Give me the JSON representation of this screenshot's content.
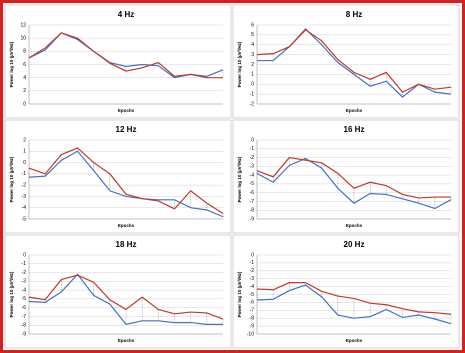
{
  "chart_data": [
    {
      "type": "line",
      "title": "4 Hz",
      "y_label": "Power log 10 (µV²/Hz)",
      "x_label": "Epochs",
      "ylim": [
        0,
        12
      ],
      "yticks": [
        0,
        2,
        4,
        6,
        8,
        10,
        12
      ],
      "grid": true,
      "series": [
        {
          "color": "#4472c4",
          "values": [
            7,
            8.2,
            10.8,
            9.8,
            8,
            6.3,
            5.7,
            6,
            5.8,
            4,
            4.5,
            4.2,
            5.2
          ]
        },
        {
          "color": "#c0392b",
          "values": [
            7,
            8.5,
            10.8,
            10,
            8,
            6.2,
            5,
            5.5,
            6.3,
            4.2,
            4.5,
            4,
            4
          ]
        }
      ]
    },
    {
      "type": "line",
      "title": "8 Hz",
      "y_label": "Power log 10 (µV²/Hz)",
      "x_label": "Epochs",
      "ylim": [
        -2,
        6
      ],
      "yticks": [
        -2,
        -1,
        0,
        1,
        2,
        3,
        4,
        5,
        6
      ],
      "grid": true,
      "series": [
        {
          "color": "#4472c4",
          "values": [
            2.4,
            2.4,
            3.8,
            5.6,
            4,
            2.2,
            1,
            -0.2,
            0.3,
            -1.3,
            0,
            -0.8,
            -1
          ]
        },
        {
          "color": "#c0392b",
          "values": [
            3,
            3.1,
            3.8,
            5.5,
            4.4,
            2.5,
            1.2,
            0.5,
            1.2,
            -0.8,
            0,
            -0.5,
            -0.3
          ]
        }
      ]
    },
    {
      "type": "line",
      "title": "12 Hz",
      "y_label": "Power log 10 (µV²/Hz)",
      "x_label": "Epochs",
      "ylim": [
        -5,
        2
      ],
      "yticks": [
        -5,
        -4,
        -3,
        -2,
        -1,
        0,
        1,
        2
      ],
      "grid": true,
      "series": [
        {
          "color": "#4472c4",
          "values": [
            -1.3,
            -1.2,
            0.2,
            1,
            -0.7,
            -2.5,
            -3,
            -3.2,
            -3.3,
            -3.3,
            -4,
            -4.2,
            -4.8
          ]
        },
        {
          "color": "#c0392b",
          "values": [
            -0.5,
            -1,
            0.7,
            1.3,
            0,
            -1,
            -2.8,
            -3.2,
            -3.4,
            -4.1,
            -2.5,
            -3.6,
            -4.5
          ]
        }
      ]
    },
    {
      "type": "line",
      "title": "16 Hz",
      "y_label": "Power log 10 (µV²/Hz)",
      "x_label": "Epochs",
      "ylim": [
        -9,
        0
      ],
      "yticks": [
        -9,
        -8,
        -7,
        -6,
        -5,
        -4,
        -3,
        -2,
        -1,
        0
      ],
      "grid": true,
      "series": [
        {
          "color": "#4472c4",
          "values": [
            -3.8,
            -4.8,
            -2.9,
            -2.1,
            -3.2,
            -5.5,
            -7.2,
            -6.1,
            -6.2,
            -6.7,
            -7.2,
            -7.8,
            -6.8
          ]
        },
        {
          "color": "#c0392b",
          "values": [
            -3.5,
            -4.2,
            -2,
            -2.3,
            -2.6,
            -3.8,
            -5.5,
            -4.8,
            -5.2,
            -6.2,
            -6.6,
            -6.5,
            -6.5
          ]
        }
      ]
    },
    {
      "type": "line",
      "title": "18 Hz",
      "y_label": "Power log 10 (µV²/Hz)",
      "x_label": "Epochs",
      "ylim": [
        -9,
        0
      ],
      "yticks": [
        -9,
        -8,
        -7,
        -6,
        -5,
        -4,
        -3,
        -2,
        -1,
        0
      ],
      "grid": true,
      "series": [
        {
          "color": "#4472c4",
          "values": [
            -5.3,
            -5.4,
            -4.2,
            -2.2,
            -4.6,
            -5.6,
            -7.9,
            -7.5,
            -7.5,
            -7.7,
            -7.7,
            -7.9,
            -7.9
          ]
        },
        {
          "color": "#c0392b",
          "values": [
            -4.8,
            -5.1,
            -2.8,
            -2.3,
            -3.1,
            -5.1,
            -6.2,
            -4.8,
            -6.2,
            -6.7,
            -6.5,
            -6.6,
            -7.3
          ]
        }
      ]
    },
    {
      "type": "line",
      "title": "20 Hz",
      "y_label": "Power log 10 (µV²/Hz)",
      "x_label": "Epochs",
      "ylim": [
        -10,
        0
      ],
      "yticks": [
        -10,
        -9,
        -8,
        -7,
        -6,
        -5,
        -4,
        -3,
        -2,
        -1,
        0
      ],
      "grid": true,
      "series": [
        {
          "color": "#4472c4",
          "values": [
            -5.7,
            -5.6,
            -4.5,
            -3.8,
            -5.3,
            -7.6,
            -8,
            -7.8,
            -6.9,
            -7.9,
            -7.6,
            -8.1,
            -8.7
          ]
        },
        {
          "color": "#c0392b",
          "values": [
            -4.3,
            -4.4,
            -3.5,
            -3.5,
            -4.6,
            -5.2,
            -5.5,
            -6.1,
            -6.3,
            -6.8,
            -7.2,
            -7.3,
            -7.5
          ]
        }
      ]
    }
  ]
}
